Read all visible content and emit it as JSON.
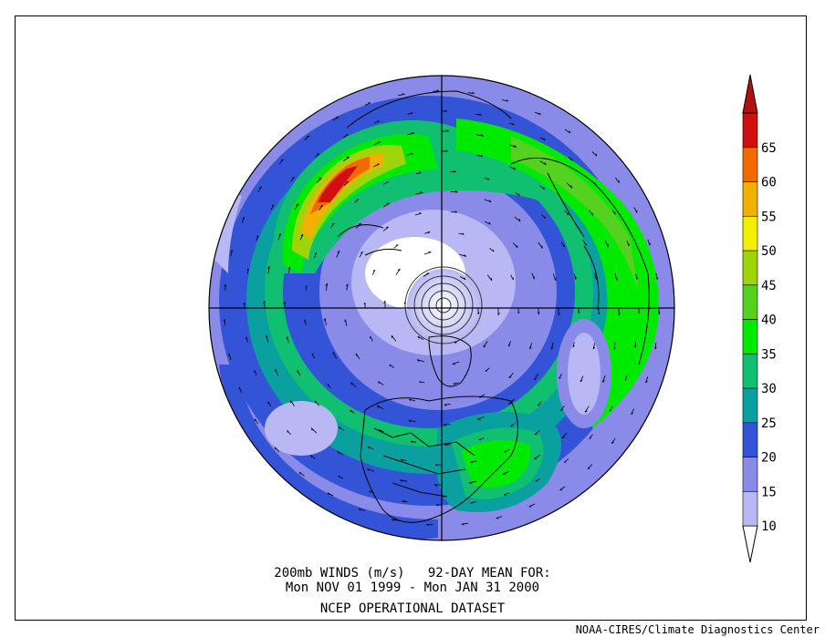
{
  "caption": {
    "line1": "200mb WINDS (m/s)   92-DAY MEAN FOR:",
    "line2": "Mon NOV 01 1999 - Mon JAN 31 2000",
    "line3": "NCEP OPERATIONAL DATASET"
  },
  "credit": "NOAA-CIRES/Climate Diagnostics Center",
  "map": {
    "projection": "polar stereographic, North Pole centered",
    "field": "200mb wind speed (m/s) with wind vectors",
    "features": [
      "North America",
      "Greenland",
      "Europe",
      "Asia",
      "Pacific jet maximum",
      "Atlantic jet"
    ]
  },
  "colorbar": {
    "levels": [
      {
        "label": "10",
        "color": "#b8b8f5"
      },
      {
        "label": "15",
        "color": "#8a8ae8"
      },
      {
        "label": "20",
        "color": "#3454d8"
      },
      {
        "label": "25",
        "color": "#0aa0a0"
      },
      {
        "label": "30",
        "color": "#10c070"
      },
      {
        "label": "35",
        "color": "#00ea00"
      },
      {
        "label": "40",
        "color": "#55d120"
      },
      {
        "label": "45",
        "color": "#9fd40a"
      },
      {
        "label": "50",
        "color": "#f0f000"
      },
      {
        "label": "55",
        "color": "#f3b000"
      },
      {
        "label": "60",
        "color": "#f06a00"
      },
      {
        "label": "65",
        "color": "#d01010"
      }
    ],
    "below_color": "#ffffff",
    "above_color": "#b01010"
  }
}
